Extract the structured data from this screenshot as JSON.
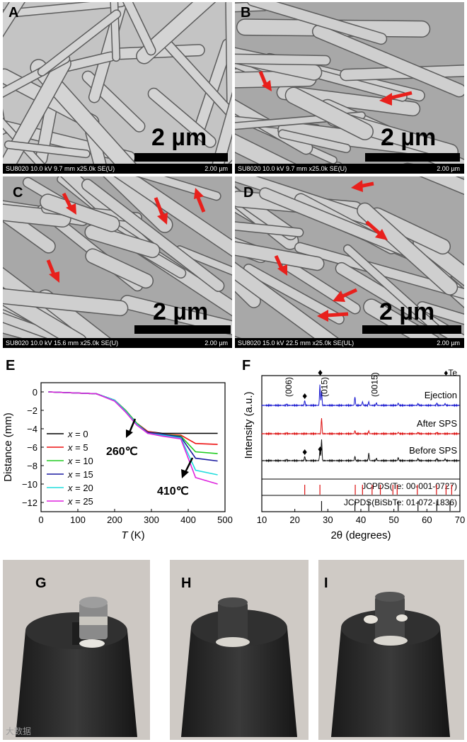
{
  "sem": [
    {
      "label": "A",
      "scale": "2 µm",
      "info": "SU8020 10.0 kV 9.7 mm x25.0k SE(U)",
      "info_scale": "2.00  µm"
    },
    {
      "label": "B",
      "scale": "2 µm",
      "info": "SU8020 10.0 kV 9.7 mm x25.0k SE(U)",
      "info_scale": "2.00  µm"
    },
    {
      "label": "C",
      "scale": "2 µm",
      "info": "SU8020 10.0 kV 15.6 mm x25.0k SE(U)",
      "info_scale": "2.00  µm"
    },
    {
      "label": "D",
      "scale": "2 µm",
      "info": "SU8020 15.0 kV 22.5 mm x25.0k SE(UL)",
      "info_scale": "2.00  µm"
    }
  ],
  "photos": [
    {
      "label": "G"
    },
    {
      "label": "H"
    },
    {
      "label": "I"
    }
  ],
  "watermark": "大数据",
  "colors": {
    "arrow": "#e8201c"
  },
  "chart_data": [
    {
      "panel": "E",
      "type": "line",
      "xlabel": "T (K)",
      "ylabel": "Distance (mm)",
      "xlim": [
        0,
        500
      ],
      "ylim": [
        -13,
        1
      ],
      "xticks": [
        0,
        100,
        200,
        300,
        400,
        500
      ],
      "yticks": [
        0,
        -2,
        -4,
        -6,
        -8,
        -10,
        -12
      ],
      "legend_prefix": "x = ",
      "annotations": [
        "260℃",
        "410℃"
      ],
      "series": [
        {
          "name": "0",
          "color": "#000000",
          "x": [
            20,
            150,
            200,
            230,
            260,
            290,
            330,
            380,
            420,
            480
          ],
          "y": [
            0,
            -0.2,
            -0.9,
            -2.0,
            -3.4,
            -4.3,
            -4.5,
            -4.5,
            -4.5,
            -4.5
          ]
        },
        {
          "name": "5",
          "color": "#ee1111",
          "x": [
            20,
            150,
            200,
            230,
            260,
            290,
            330,
            380,
            420,
            480
          ],
          "y": [
            0,
            -0.2,
            -0.9,
            -2.0,
            -3.4,
            -4.3,
            -4.6,
            -4.7,
            -5.6,
            -5.7
          ]
        },
        {
          "name": "10",
          "color": "#22cc22",
          "x": [
            20,
            150,
            200,
            230,
            260,
            290,
            330,
            380,
            420,
            480
          ],
          "y": [
            0,
            -0.2,
            -0.9,
            -2.0,
            -3.4,
            -4.4,
            -4.6,
            -4.8,
            -6.5,
            -6.7
          ]
        },
        {
          "name": "15",
          "color": "#1a1aa0",
          "x": [
            20,
            150,
            200,
            230,
            260,
            290,
            330,
            380,
            420,
            480
          ],
          "y": [
            0,
            -0.2,
            -0.9,
            -2.1,
            -3.5,
            -4.4,
            -4.6,
            -4.9,
            -7.2,
            -7.5
          ]
        },
        {
          "name": "20",
          "color": "#22dddd",
          "x": [
            20,
            150,
            200,
            230,
            260,
            290,
            330,
            380,
            420,
            480
          ],
          "y": [
            0,
            -0.2,
            -0.9,
            -2.1,
            -3.5,
            -4.5,
            -4.7,
            -5.0,
            -8.5,
            -9.0
          ]
        },
        {
          "name": "25",
          "color": "#dd22dd",
          "x": [
            20,
            150,
            200,
            230,
            260,
            290,
            330,
            380,
            420,
            480
          ],
          "y": [
            0,
            -0.2,
            -1.0,
            -2.2,
            -3.6,
            -4.5,
            -4.8,
            -5.1,
            -9.3,
            -10.0
          ]
        }
      ]
    },
    {
      "panel": "F",
      "type": "line",
      "xlabel": "2θ (degrees)",
      "ylabel": "Intensity (a.u.)",
      "xlim": [
        10,
        70
      ],
      "xticks": [
        10,
        20,
        30,
        40,
        50,
        60,
        70
      ],
      "legend": "♦Te",
      "peak_labels": [
        "(006)",
        "(015)",
        "(0015)"
      ],
      "series": [
        {
          "name": "Ejection",
          "color": "#1a1ad0",
          "peaks": [
            [
              17.5,
              0.05
            ],
            [
              23,
              0.2
            ],
            [
              27.6,
              0.85
            ],
            [
              28.1,
              0.6
            ],
            [
              38.2,
              0.35
            ],
            [
              40.5,
              0.15
            ],
            [
              42.4,
              0.15
            ],
            [
              44.7,
              0.1
            ],
            [
              51.3,
              0.1
            ],
            [
              57.3,
              0.08
            ],
            [
              63,
              0.1
            ],
            [
              65.5,
              0.07
            ]
          ]
        },
        {
          "name": "After SPS",
          "color": "#dd1111",
          "peaks": [
            [
              17.5,
              0.05
            ],
            [
              28.1,
              1.0
            ],
            [
              38.2,
              0.2
            ],
            [
              42.4,
              0.18
            ],
            [
              51.3,
              0.1
            ],
            [
              57.3,
              0.08
            ],
            [
              63,
              0.08
            ]
          ]
        },
        {
          "name": "Before SPS",
          "color": "#111111",
          "peaks": [
            [
              17.5,
              0.05
            ],
            [
              23,
              0.2
            ],
            [
              27.6,
              0.5
            ],
            [
              28.1,
              1.0
            ],
            [
              38.2,
              0.2
            ],
            [
              42.4,
              0.35
            ],
            [
              44.7,
              0.1
            ],
            [
              51.3,
              0.15
            ],
            [
              57.3,
              0.1
            ],
            [
              63,
              0.1
            ],
            [
              65.5,
              0.08
            ]
          ]
        }
      ],
      "references": [
        {
          "label": "JCPDS(Te: 00-001-0727)",
          "color": "#dd1111",
          "lines": [
            23.0,
            27.6,
            38.3,
            40.5,
            43.4,
            45.9,
            49.7,
            51.0,
            57.1,
            62.9,
            65.8,
            67.5
          ]
        },
        {
          "label": "JCPDS(BiSbTe: 01-072-1836)",
          "color": "#111111",
          "lines": [
            28.1,
            38.2,
            42.4,
            51.3,
            57.3,
            63.0,
            67.0
          ]
        }
      ]
    }
  ]
}
